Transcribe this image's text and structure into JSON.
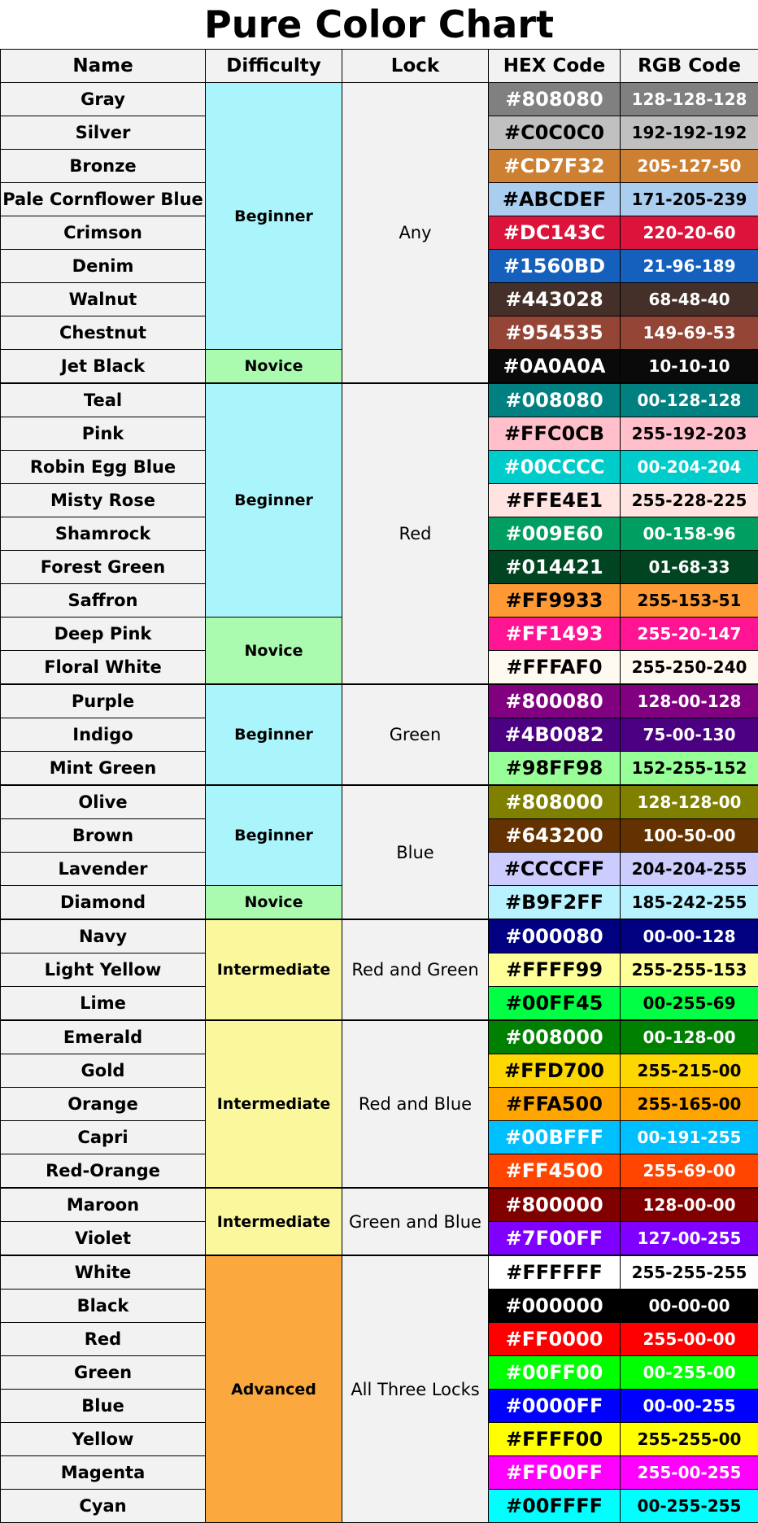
{
  "title": "Pure Color Chart",
  "headers": {
    "name": "Name",
    "difficulty": "Difficulty",
    "lock": "Lock",
    "hex": "HEX Code",
    "rgb": "RGB Code"
  },
  "difficulty_colors": {
    "Beginner": "#aaf5fb",
    "Novice": "#aafbaf",
    "Intermediate": "#faf79d",
    "Advanced": "#fba83f"
  },
  "rows": [
    {
      "name": "Gray",
      "hex": "#808080",
      "rgb": "128-128-128"
    },
    {
      "name": "Silver",
      "hex": "#C0C0C0",
      "rgb": "192-192-192"
    },
    {
      "name": "Bronze",
      "hex": "#CD7F32",
      "rgb": "205-127-50"
    },
    {
      "name": "Pale Cornflower Blue",
      "hex": "#ABCDEF",
      "rgb": "171-205-239"
    },
    {
      "name": "Crimson",
      "hex": "#DC143C",
      "rgb": "220-20-60"
    },
    {
      "name": "Denim",
      "hex": "#1560BD",
      "rgb": "21-96-189"
    },
    {
      "name": "Walnut",
      "hex": "#443028",
      "rgb": "68-48-40"
    },
    {
      "name": "Chestnut",
      "hex": "#954535",
      "rgb": "149-69-53"
    },
    {
      "name": "Jet Black",
      "hex": "#0A0A0A",
      "rgb": "10-10-10"
    },
    {
      "name": "Teal",
      "hex": "#008080",
      "rgb": "00-128-128"
    },
    {
      "name": "Pink",
      "hex": "#FFC0CB",
      "rgb": "255-192-203"
    },
    {
      "name": "Robin Egg Blue",
      "hex": "#00CCCC",
      "rgb": "00-204-204"
    },
    {
      "name": "Misty Rose",
      "hex": "#FFE4E1",
      "rgb": "255-228-225"
    },
    {
      "name": "Shamrock",
      "hex": "#009E60",
      "rgb": "00-158-96"
    },
    {
      "name": "Forest Green",
      "hex": "#014421",
      "rgb": "01-68-33"
    },
    {
      "name": "Saffron",
      "hex": "#FF9933",
      "rgb": "255-153-51"
    },
    {
      "name": "Deep Pink",
      "hex": "#FF1493",
      "rgb": "255-20-147"
    },
    {
      "name": "Floral White",
      "hex": "#FFFAF0",
      "rgb": "255-250-240"
    },
    {
      "name": "Purple",
      "hex": "#800080",
      "rgb": "128-00-128"
    },
    {
      "name": "Indigo",
      "hex": "#4B0082",
      "rgb": "75-00-130"
    },
    {
      "name": "Mint Green",
      "hex": "#98FF98",
      "rgb": "152-255-152"
    },
    {
      "name": "Olive",
      "hex": "#808000",
      "rgb": "128-128-00"
    },
    {
      "name": "Brown",
      "hex": "#643200",
      "rgb": "100-50-00"
    },
    {
      "name": "Lavender",
      "hex": "#CCCCFF",
      "rgb": "204-204-255"
    },
    {
      "name": "Diamond",
      "hex": "#B9F2FF",
      "rgb": "185-242-255"
    },
    {
      "name": "Navy",
      "hex": "#000080",
      "rgb": "00-00-128"
    },
    {
      "name": "Light Yellow",
      "hex": "#FFFF99",
      "rgb": "255-255-153"
    },
    {
      "name": "Lime",
      "hex": "#00FF45",
      "rgb": "00-255-69"
    },
    {
      "name": "Emerald",
      "hex": "#008000",
      "rgb": "00-128-00"
    },
    {
      "name": "Gold",
      "hex": "#FFD700",
      "rgb": "255-215-00"
    },
    {
      "name": "Orange",
      "hex": "#FFA500",
      "rgb": "255-165-00"
    },
    {
      "name": "Capri",
      "hex": "#00BFFF",
      "rgb": "00-191-255"
    },
    {
      "name": "Red-Orange",
      "hex": "#FF4500",
      "rgb": "255-69-00"
    },
    {
      "name": "Maroon",
      "hex": "#800000",
      "rgb": "128-00-00"
    },
    {
      "name": "Violet",
      "hex": "#7F00FF",
      "rgb": "127-00-255"
    },
    {
      "name": "White",
      "hex": "#FFFFFF",
      "rgb": "255-255-255"
    },
    {
      "name": "Black",
      "hex": "#000000",
      "rgb": "00-00-00"
    },
    {
      "name": "Red",
      "hex": "#FF0000",
      "rgb": "255-00-00"
    },
    {
      "name": "Green",
      "hex": "#00FF00",
      "rgb": "00-255-00"
    },
    {
      "name": "Blue",
      "hex": "#0000FF",
      "rgb": "00-00-255"
    },
    {
      "name": "Yellow",
      "hex": "#FFFF00",
      "rgb": "255-255-00"
    },
    {
      "name": "Magenta",
      "hex": "#FF00FF",
      "rgb": "255-00-255"
    },
    {
      "name": "Cyan",
      "hex": "#00FFFF",
      "rgb": "00-255-255"
    }
  ],
  "difficulty_groups": [
    {
      "label": "Beginner",
      "rows": 8
    },
    {
      "label": "Novice",
      "rows": 1
    },
    {
      "label": "Beginner",
      "rows": 7
    },
    {
      "label": "Novice",
      "rows": 2
    },
    {
      "label": "Beginner",
      "rows": 3
    },
    {
      "label": "Beginner",
      "rows": 3
    },
    {
      "label": "Novice",
      "rows": 1
    },
    {
      "label": "Intermediate",
      "rows": 3
    },
    {
      "label": "Intermediate",
      "rows": 5
    },
    {
      "label": "Intermediate",
      "rows": 2
    },
    {
      "label": "Advanced",
      "rows": 8
    }
  ],
  "lock_groups": [
    {
      "label": "Any",
      "rows": 9
    },
    {
      "label": "Red",
      "rows": 9
    },
    {
      "label": "Green",
      "rows": 3
    },
    {
      "label": "Blue",
      "rows": 4
    },
    {
      "label": "Red and Green",
      "rows": 3
    },
    {
      "label": "Red and Blue",
      "rows": 5
    },
    {
      "label": "Green and Blue",
      "rows": 2
    },
    {
      "label": "All Three Locks",
      "rows": 8
    }
  ]
}
